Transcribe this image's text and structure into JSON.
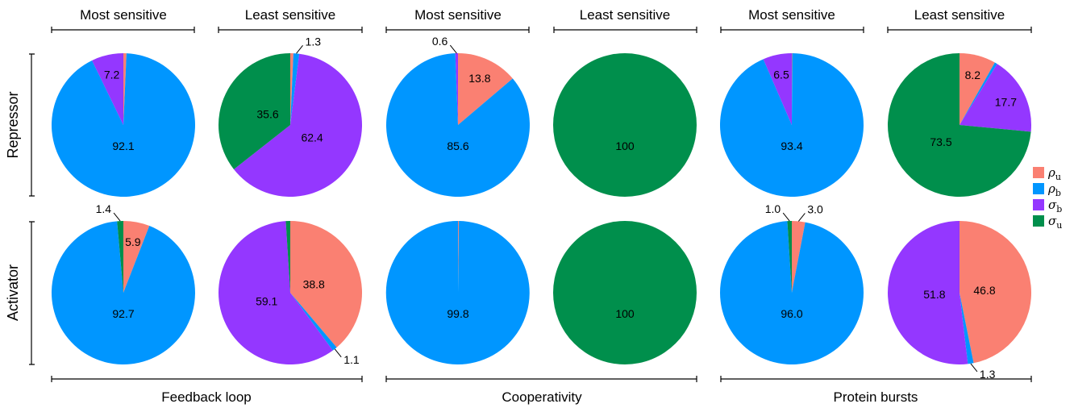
{
  "column_headers": [
    "Most sensitive",
    "Least sensitive",
    "Most sensitive",
    "Least sensitive",
    "Most sensitive",
    "Least sensitive"
  ],
  "group_labels": [
    "Feedback loop",
    "Cooperativity",
    "Protein bursts"
  ],
  "row_labels": [
    "Repressor",
    "Activator"
  ],
  "legend": [
    {
      "symbol": "ρ",
      "sub": "u",
      "color": "#fa8072"
    },
    {
      "symbol": "ρ",
      "sub": "b",
      "color": "#0096ff"
    },
    {
      "symbol": "σ",
      "sub": "b",
      "color": "#9437ff"
    },
    {
      "symbol": "σ",
      "sub": "u",
      "color": "#008f4c"
    }
  ],
  "chart_data": [
    {
      "type": "pie",
      "row": "Repressor",
      "group": "Feedback loop",
      "column": "Most sensitive",
      "slices": [
        {
          "series": "ρu",
          "value": 0.7,
          "label": ""
        },
        {
          "series": "ρb",
          "value": 92.1,
          "label": "92.1"
        },
        {
          "series": "σb",
          "value": 7.2,
          "label": "7.2"
        },
        {
          "series": "σu",
          "value": 0.0,
          "label": ""
        }
      ]
    },
    {
      "type": "pie",
      "row": "Repressor",
      "group": "Feedback loop",
      "column": "Least sensitive",
      "slices": [
        {
          "series": "ρu",
          "value": 0.7,
          "label": ""
        },
        {
          "series": "ρb",
          "value": 1.3,
          "label": "1.3"
        },
        {
          "series": "σb",
          "value": 62.4,
          "label": "62.4"
        },
        {
          "series": "σu",
          "value": 35.6,
          "label": "35.6"
        }
      ]
    },
    {
      "type": "pie",
      "row": "Repressor",
      "group": "Cooperativity",
      "column": "Most sensitive",
      "slices": [
        {
          "series": "ρu",
          "value": 13.8,
          "label": "13.8"
        },
        {
          "series": "ρb",
          "value": 85.6,
          "label": "85.6"
        },
        {
          "series": "σb",
          "value": 0.6,
          "label": "0.6"
        },
        {
          "series": "σu",
          "value": 0.0,
          "label": ""
        }
      ]
    },
    {
      "type": "pie",
      "row": "Repressor",
      "group": "Cooperativity",
      "column": "Least sensitive",
      "slices": [
        {
          "series": "ρu",
          "value": 0.0,
          "label": ""
        },
        {
          "series": "ρb",
          "value": 0.0,
          "label": ""
        },
        {
          "series": "σb",
          "value": 0.0,
          "label": ""
        },
        {
          "series": "σu",
          "value": 100,
          "label": "100"
        }
      ]
    },
    {
      "type": "pie",
      "row": "Repressor",
      "group": "Protein bursts",
      "column": "Most sensitive",
      "slices": [
        {
          "series": "ρu",
          "value": 0.1,
          "label": ""
        },
        {
          "series": "ρb",
          "value": 93.4,
          "label": "93.4"
        },
        {
          "series": "σb",
          "value": 6.5,
          "label": "6.5"
        },
        {
          "series": "σu",
          "value": 0.0,
          "label": ""
        }
      ]
    },
    {
      "type": "pie",
      "row": "Repressor",
      "group": "Protein bursts",
      "column": "Least sensitive",
      "slices": [
        {
          "series": "ρu",
          "value": 8.2,
          "label": "8.2"
        },
        {
          "series": "ρb",
          "value": 0.6,
          "label": ""
        },
        {
          "series": "σb",
          "value": 17.7,
          "label": "17.7"
        },
        {
          "series": "σu",
          "value": 73.5,
          "label": "73.5"
        }
      ]
    },
    {
      "type": "pie",
      "row": "Activator",
      "group": "Feedback loop",
      "column": "Most sensitive",
      "slices": [
        {
          "series": "ρu",
          "value": 5.9,
          "label": "5.9"
        },
        {
          "series": "ρb",
          "value": 92.7,
          "label": "92.7"
        },
        {
          "series": "σb",
          "value": 0.0,
          "label": ""
        },
        {
          "series": "σu",
          "value": 1.4,
          "label": "1.4"
        }
      ]
    },
    {
      "type": "pie",
      "row": "Activator",
      "group": "Feedback loop",
      "column": "Least sensitive",
      "slices": [
        {
          "series": "ρu",
          "value": 38.8,
          "label": "38.8"
        },
        {
          "series": "ρb",
          "value": 1.1,
          "label": "1.1"
        },
        {
          "series": "σb",
          "value": 59.1,
          "label": "59.1"
        },
        {
          "series": "σu",
          "value": 1.0,
          "label": ""
        }
      ]
    },
    {
      "type": "pie",
      "row": "Activator",
      "group": "Cooperativity",
      "column": "Most sensitive",
      "slices": [
        {
          "series": "ρu",
          "value": 0.2,
          "label": ""
        },
        {
          "series": "ρb",
          "value": 99.8,
          "label": "99.8"
        },
        {
          "series": "σb",
          "value": 0.0,
          "label": ""
        },
        {
          "series": "σu",
          "value": 0.0,
          "label": ""
        }
      ]
    },
    {
      "type": "pie",
      "row": "Activator",
      "group": "Cooperativity",
      "column": "Least sensitive",
      "slices": [
        {
          "series": "ρu",
          "value": 0.0,
          "label": ""
        },
        {
          "series": "ρb",
          "value": 0.0,
          "label": ""
        },
        {
          "series": "σb",
          "value": 0.0,
          "label": ""
        },
        {
          "series": "σu",
          "value": 100,
          "label": "100"
        }
      ]
    },
    {
      "type": "pie",
      "row": "Activator",
      "group": "Protein bursts",
      "column": "Most sensitive",
      "slices": [
        {
          "series": "ρu",
          "value": 3.0,
          "label": "3.0"
        },
        {
          "series": "ρb",
          "value": 96.0,
          "label": "96.0"
        },
        {
          "series": "σb",
          "value": 0.0,
          "label": ""
        },
        {
          "series": "σu",
          "value": 1.0,
          "label": "1.0"
        }
      ]
    },
    {
      "type": "pie",
      "row": "Activator",
      "group": "Protein bursts",
      "column": "Least sensitive",
      "slices": [
        {
          "series": "ρu",
          "value": 46.8,
          "label": "46.8"
        },
        {
          "series": "ρb",
          "value": 1.3,
          "label": "1.3"
        },
        {
          "series": "σb",
          "value": 51.8,
          "label": "51.8"
        },
        {
          "series": "σu",
          "value": 0.0,
          "label": ""
        }
      ]
    }
  ]
}
